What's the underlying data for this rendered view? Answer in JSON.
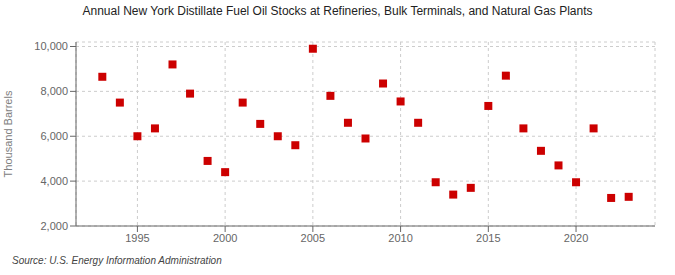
{
  "chart_data": {
    "type": "scatter",
    "title": "Annual New York Distillate Fuel Oil Stocks at Refineries, Bulk Terminals, and Natural Gas Plants",
    "y_label": "Thousand Barrels",
    "annotations": [
      "Source: U.S. Energy Information Administration"
    ],
    "x": [
      1993,
      1994,
      1995,
      1996,
      1997,
      1998,
      1999,
      2000,
      2001,
      2002,
      2003,
      2004,
      2005,
      2006,
      2007,
      2008,
      2009,
      2010,
      2011,
      2012,
      2013,
      2014,
      2015,
      2016,
      2017,
      2018,
      2019,
      2020,
      2021,
      2022,
      2023
    ],
    "values": [
      8650,
      7500,
      6000,
      6350,
      9200,
      7900,
      4900,
      4400,
      7500,
      6550,
      6000,
      5600,
      9900,
      7800,
      6600,
      5900,
      8350,
      7550,
      6600,
      3950,
      3400,
      3700,
      7350,
      8700,
      6350,
      5350,
      4700,
      3950,
      6350,
      3250,
      3300
    ],
    "color": "#cc0000",
    "marker": "square",
    "xlim": [
      1991.5,
      2024.5
    ],
    "ylim": [
      2000,
      10200
    ],
    "xticks": [
      1995,
      2000,
      2005,
      2010,
      2015,
      2020
    ],
    "yticks": [
      {
        "value": 2000,
        "label": "2,000"
      },
      {
        "value": 4000,
        "label": "4,000"
      },
      {
        "value": 6000,
        "label": "6,000"
      },
      {
        "value": 8000,
        "label": "8,000"
      },
      {
        "value": 10000,
        "label": "10,000"
      }
    ],
    "grid": true
  }
}
